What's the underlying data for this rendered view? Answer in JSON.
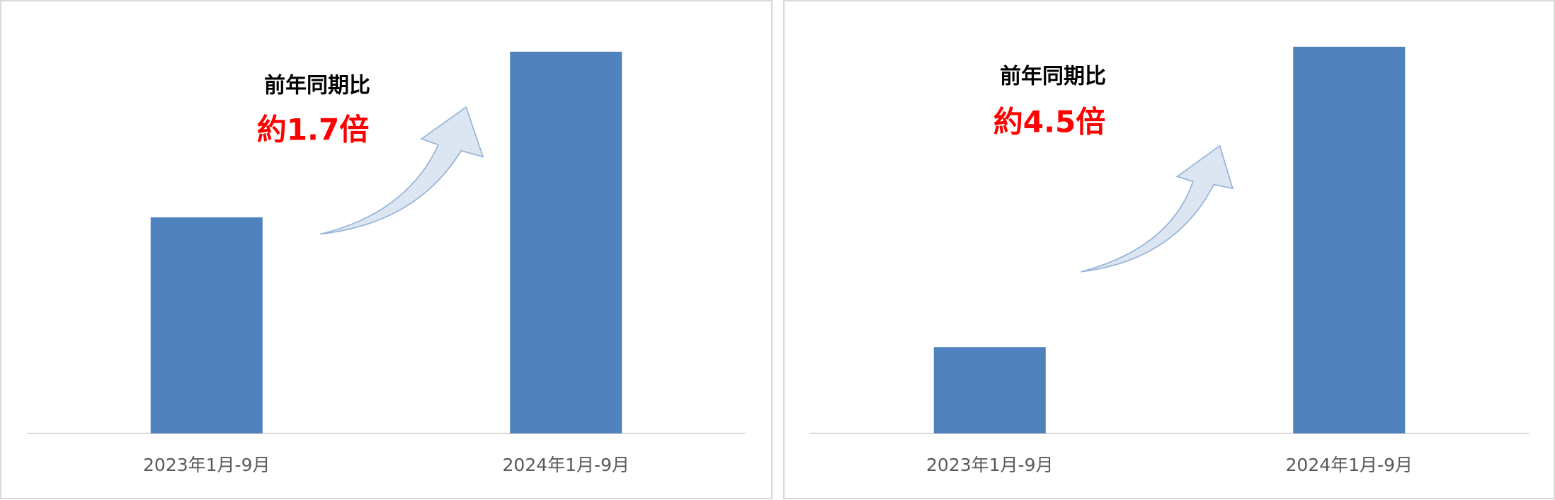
{
  "chart_data": [
    {
      "type": "bar",
      "categories": [
        "2023年1月-9月",
        "2024年1月-9月"
      ],
      "values": [
        218,
        385
      ],
      "color": "#4f81bd",
      "annotations": [
        "前年同期比",
        "約1.7倍"
      ],
      "annotation_colors": [
        "#000000",
        "#ff0000"
      ]
    },
    {
      "type": "bar",
      "categories": [
        "2023年1月-9月",
        "2024年1月-9月"
      ],
      "values": [
        87,
        390
      ],
      "color": "#4f81bd",
      "annotations": [
        "前年同期比",
        "約4.5倍"
      ],
      "annotation_colors": [
        "#000000",
        "#ff0000"
      ]
    }
  ]
}
